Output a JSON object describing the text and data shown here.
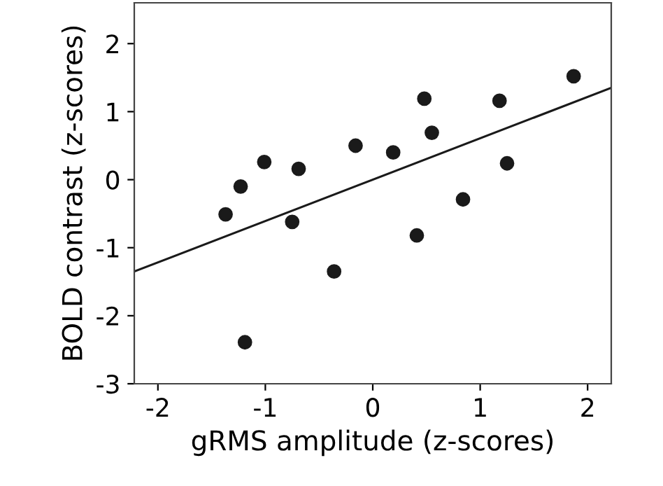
{
  "chart_data": {
    "type": "scatter",
    "xlabel": "gRMS amplitude (z-scores)",
    "ylabel": "BOLD contrast (z-scores)",
    "xlim": [
      -2.22,
      2.22
    ],
    "ylim": [
      -3,
      2.6
    ],
    "xticks": [
      -2,
      -1,
      0,
      1,
      2
    ],
    "yticks": [
      -3,
      -2,
      -1,
      0,
      1,
      2
    ],
    "grid": false,
    "series": [
      {
        "marker": "circle",
        "color": "#1a1a1a",
        "x": [
          -1.37,
          -1.23,
          -1.19,
          -1.01,
          -0.75,
          -0.69,
          -0.36,
          -0.16,
          0.19,
          0.41,
          0.48,
          0.55,
          0.84,
          1.18,
          1.25,
          1.87
        ],
        "values": [
          -0.51,
          -0.1,
          -2.39,
          0.26,
          -0.62,
          0.16,
          -1.35,
          0.5,
          0.4,
          -0.82,
          1.19,
          0.69,
          -0.29,
          1.16,
          0.24,
          1.52
        ]
      },
      {
        "type": "line",
        "marker": "none",
        "color": "#1a1a1a",
        "line_style": "solid",
        "x": [
          -2.22,
          2.22
        ],
        "values": [
          -1.35,
          1.35
        ]
      }
    ]
  }
}
